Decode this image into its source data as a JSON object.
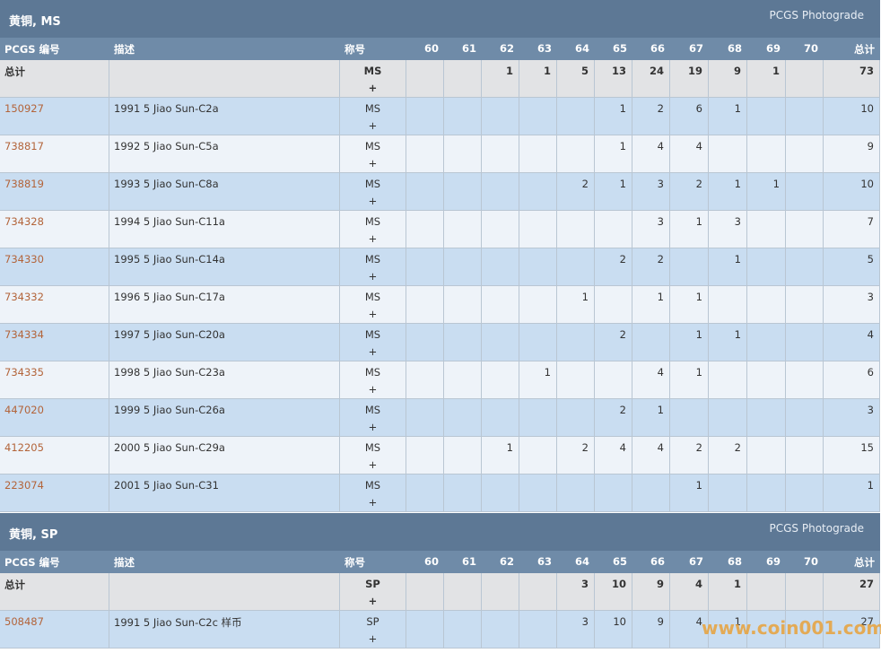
{
  "columns": [
    "PCGS 编号",
    "描述",
    "称号",
    "60",
    "61",
    "62",
    "63",
    "64",
    "65",
    "66",
    "67",
    "68",
    "69",
    "70",
    "总计"
  ],
  "sections": [
    {
      "title": "黄铜, MS",
      "photograde": "PCGS Photograde",
      "total": {
        "label": "总计",
        "designation": "MS",
        "plus": "+",
        "cells": [
          null,
          null,
          1,
          1,
          5,
          13,
          24,
          19,
          9,
          1,
          null,
          73
        ]
      },
      "rows": [
        {
          "id": "150927",
          "desc": "1991 5 Jiao Sun-C2a",
          "designation": "MS",
          "plus": "+",
          "cells": [
            null,
            null,
            null,
            null,
            null,
            1,
            2,
            6,
            1,
            null,
            null,
            10
          ]
        },
        {
          "id": "738817",
          "desc": "1992 5 Jiao Sun-C5a",
          "designation": "MS",
          "plus": "+",
          "cells": [
            null,
            null,
            null,
            null,
            null,
            1,
            4,
            4,
            null,
            null,
            null,
            9
          ]
        },
        {
          "id": "738819",
          "desc": "1993 5 Jiao Sun-C8a",
          "designation": "MS",
          "plus": "+",
          "cells": [
            null,
            null,
            null,
            null,
            2,
            1,
            3,
            2,
            1,
            1,
            null,
            10
          ]
        },
        {
          "id": "734328",
          "desc": "1994 5 Jiao Sun-C11a",
          "designation": "MS",
          "plus": "+",
          "cells": [
            null,
            null,
            null,
            null,
            null,
            null,
            3,
            1,
            3,
            null,
            null,
            7
          ]
        },
        {
          "id": "734330",
          "desc": "1995 5 Jiao Sun-C14a",
          "designation": "MS",
          "plus": "+",
          "cells": [
            null,
            null,
            null,
            null,
            null,
            2,
            2,
            null,
            1,
            null,
            null,
            5
          ]
        },
        {
          "id": "734332",
          "desc": "1996 5 Jiao Sun-C17a",
          "designation": "MS",
          "plus": "+",
          "cells": [
            null,
            null,
            null,
            null,
            1,
            null,
            1,
            1,
            null,
            null,
            null,
            3
          ]
        },
        {
          "id": "734334",
          "desc": "1997 5 Jiao Sun-C20a",
          "designation": "MS",
          "plus": "+",
          "cells": [
            null,
            null,
            null,
            null,
            null,
            2,
            null,
            1,
            1,
            null,
            null,
            4
          ]
        },
        {
          "id": "734335",
          "desc": "1998 5 Jiao Sun-C23a",
          "designation": "MS",
          "plus": "+",
          "cells": [
            null,
            null,
            null,
            1,
            null,
            null,
            4,
            1,
            null,
            null,
            null,
            6
          ]
        },
        {
          "id": "447020",
          "desc": "1999 5 Jiao Sun-C26a",
          "designation": "MS",
          "plus": "+",
          "cells": [
            null,
            null,
            null,
            null,
            null,
            2,
            1,
            null,
            null,
            null,
            null,
            3
          ]
        },
        {
          "id": "412205",
          "desc": "2000 5 Jiao Sun-C29a",
          "designation": "MS",
          "plus": "+",
          "cells": [
            null,
            null,
            1,
            null,
            2,
            4,
            4,
            2,
            2,
            null,
            null,
            15
          ]
        },
        {
          "id": "223074",
          "desc": "2001 5 Jiao Sun-C31",
          "designation": "MS",
          "plus": "+",
          "cells": [
            null,
            null,
            null,
            null,
            null,
            null,
            null,
            1,
            null,
            null,
            null,
            1
          ]
        }
      ]
    },
    {
      "title": "黄铜, SP",
      "photograde": "PCGS Photograde",
      "total": {
        "label": "总计",
        "designation": "SP",
        "plus": "+",
        "cells": [
          null,
          null,
          null,
          null,
          3,
          10,
          9,
          4,
          1,
          null,
          null,
          27
        ]
      },
      "rows": [
        {
          "id": "508487",
          "desc": "1991 5 Jiao Sun-C2c 样币",
          "designation": "SP",
          "plus": "+",
          "cells": [
            null,
            null,
            null,
            null,
            3,
            10,
            9,
            4,
            1,
            null,
            null,
            27
          ]
        }
      ]
    }
  ],
  "watermark": "www.coin001.com"
}
